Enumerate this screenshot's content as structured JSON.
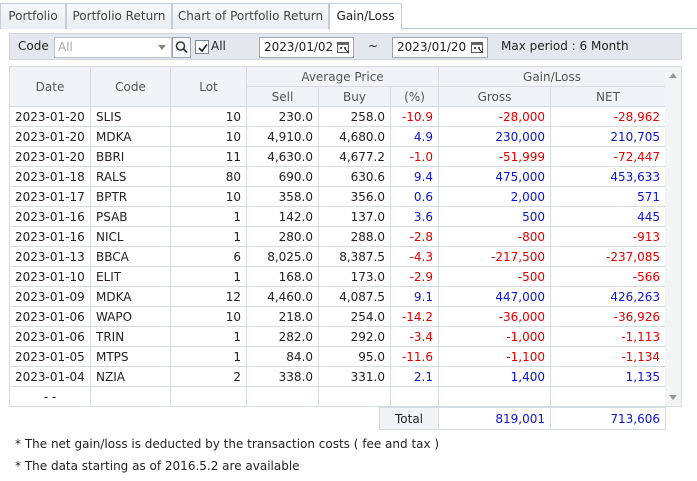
{
  "tabs": [
    {
      "label": "Portfolio"
    },
    {
      "label": "Portfolio Return"
    },
    {
      "label": "Chart of Portfolio Return"
    },
    {
      "label": "Gain/Loss",
      "active": true
    }
  ],
  "toolbar": {
    "code_label": "Code",
    "code_placeholder": "All",
    "all_checked": true,
    "all_label": "All",
    "date_from": "2023/01/02",
    "date_separator": "~",
    "date_to": "2023/01/20",
    "max_period": "Max period : 6 Month"
  },
  "table": {
    "headers": {
      "date": "Date",
      "code": "Code",
      "lot": "Lot",
      "average_price": "Average Price",
      "sell": "Sell",
      "buy": "Buy",
      "pct": "(%)",
      "gain_loss": "Gain/Loss",
      "gross": "Gross",
      "net": "NET"
    },
    "rows": [
      {
        "date": "2023-01-20",
        "code": "SLIS",
        "lot": "10",
        "sell": "230.0",
        "buy": "258.0",
        "pct": "-10.9",
        "gross": "-28,000",
        "net": "-28,962"
      },
      {
        "date": "2023-01-20",
        "code": "MDKA",
        "lot": "10",
        "sell": "4,910.0",
        "buy": "4,680.0",
        "pct": "4.9",
        "gross": "230,000",
        "net": "210,705"
      },
      {
        "date": "2023-01-20",
        "code": "BBRI",
        "lot": "11",
        "sell": "4,630.0",
        "buy": "4,677.2",
        "pct": "-1.0",
        "gross": "-51,999",
        "net": "-72,447"
      },
      {
        "date": "2023-01-18",
        "code": "RALS",
        "lot": "80",
        "sell": "690.0",
        "buy": "630.6",
        "pct": "9.4",
        "gross": "475,000",
        "net": "453,633"
      },
      {
        "date": "2023-01-17",
        "code": "BPTR",
        "lot": "10",
        "sell": "358.0",
        "buy": "356.0",
        "pct": "0.6",
        "gross": "2,000",
        "net": "571"
      },
      {
        "date": "2023-01-16",
        "code": "PSAB",
        "lot": "1",
        "sell": "142.0",
        "buy": "137.0",
        "pct": "3.6",
        "gross": "500",
        "net": "445"
      },
      {
        "date": "2023-01-16",
        "code": "NICL",
        "lot": "1",
        "sell": "280.0",
        "buy": "288.0",
        "pct": "-2.8",
        "gross": "-800",
        "net": "-913"
      },
      {
        "date": "2023-01-13",
        "code": "BBCA",
        "lot": "6",
        "sell": "8,025.0",
        "buy": "8,387.5",
        "pct": "-4.3",
        "gross": "-217,500",
        "net": "-237,085"
      },
      {
        "date": "2023-01-10",
        "code": "ELIT",
        "lot": "1",
        "sell": "168.0",
        "buy": "173.0",
        "pct": "-2.9",
        "gross": "-500",
        "net": "-566"
      },
      {
        "date": "2023-01-09",
        "code": "MDKA",
        "lot": "12",
        "sell": "4,460.0",
        "buy": "4,087.5",
        "pct": "9.1",
        "gross": "447,000",
        "net": "426,263"
      },
      {
        "date": "2023-01-06",
        "code": "WAPO",
        "lot": "10",
        "sell": "218.0",
        "buy": "254.0",
        "pct": "-14.2",
        "gross": "-36,000",
        "net": "-36,926"
      },
      {
        "date": "2023-01-06",
        "code": "TRIN",
        "lot": "1",
        "sell": "282.0",
        "buy": "292.0",
        "pct": "-3.4",
        "gross": "-1,000",
        "net": "-1,113"
      },
      {
        "date": "2023-01-05",
        "code": "MTPS",
        "lot": "1",
        "sell": "84.0",
        "buy": "95.0",
        "pct": "-11.6",
        "gross": "-1,100",
        "net": "-1,134"
      },
      {
        "date": "2023-01-04",
        "code": "NZIA",
        "lot": "2",
        "sell": "338.0",
        "buy": "331.0",
        "pct": "2.1",
        "gross": "1,400",
        "net": "1,135"
      }
    ],
    "empty_row_date": "-  -"
  },
  "total": {
    "label": "Total",
    "gross": "819,001",
    "net": "713,606"
  },
  "notes": [
    "* The net gain/loss is deducted by the transaction costs ( fee and tax )",
    "* The data starting as of 2016.5.2 are available"
  ],
  "colors": {
    "negative": "#e00000",
    "positive": "#0a14d0",
    "header_bg": "#f1f3f6",
    "toolbar_bg": "#e3e8ee"
  }
}
